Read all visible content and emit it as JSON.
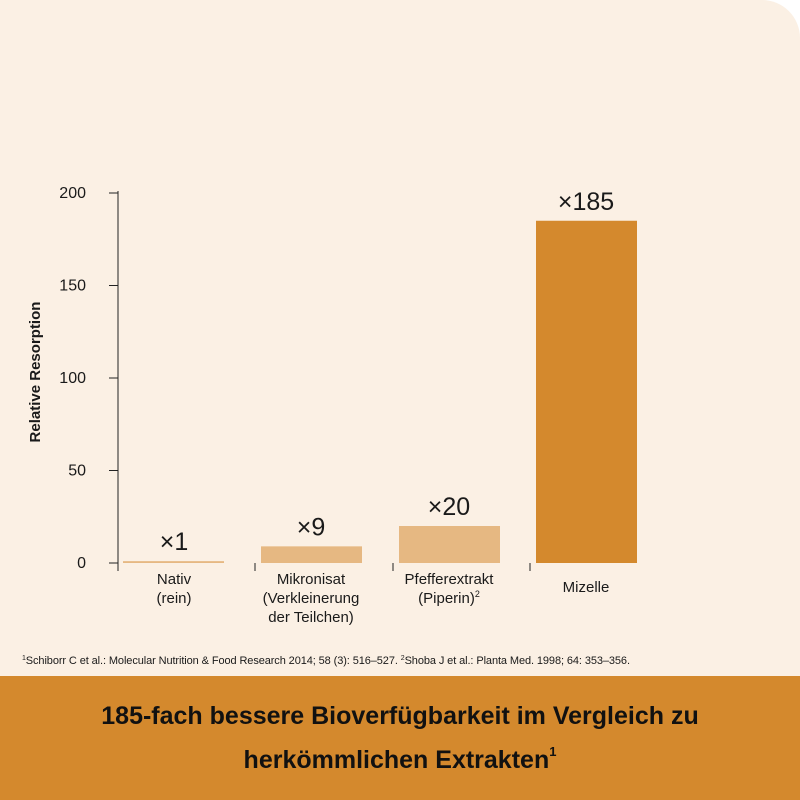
{
  "colors": {
    "background": "#fbf0e4",
    "bar_light": "#e6b882",
    "bar_accent": "#d4892d",
    "banner": "#d4892d",
    "text": "#1a1a1a"
  },
  "chart_data": {
    "type": "bar",
    "ylabel": "Relative Resorption",
    "ylim": [
      0,
      200
    ],
    "yticks": [
      0,
      50,
      100,
      150,
      200
    ],
    "categories": [
      [
        "Nativ",
        "(rein)"
      ],
      [
        "Mikronisat",
        "(Verkleinerung",
        "der Teilchen)"
      ],
      [
        "Pfefferextrakt",
        "(Piperin)"
      ],
      [
        "Mizelle"
      ]
    ],
    "category_superscripts": [
      "",
      "",
      "2",
      ""
    ],
    "values": [
      1,
      9,
      20,
      185
    ],
    "data_labels": [
      "×1",
      "×9",
      "×20",
      "×185"
    ],
    "highlight_index": 3
  },
  "footnote": {
    "ref1_marker": "1",
    "ref1_text": "Schiborr C et al.: Molecular Nutrition & Food Research 2014; 58 (3): 516–527. ",
    "ref2_marker": "2",
    "ref2_text": "Shoba J et al.: Planta Med. 1998; 64: 353–356."
  },
  "banner": {
    "text": "185-fach bessere Bioverfügbarkeit im Vergleich zu herkömmlichen Extrakten",
    "superscript": "1"
  }
}
